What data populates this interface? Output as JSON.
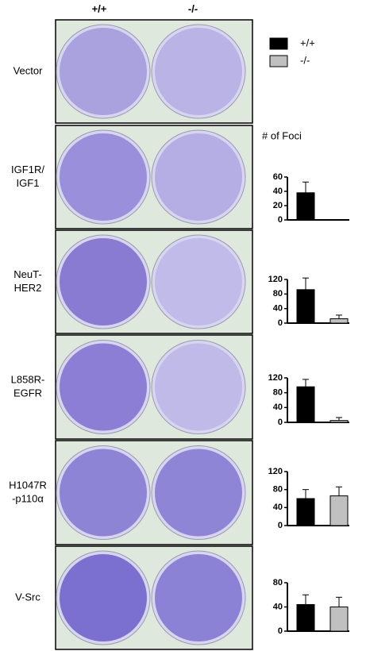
{
  "columns": [
    "+/+",
    "-/-"
  ],
  "legend": [
    {
      "name": "+/+",
      "color": "#000000"
    },
    {
      "name": "-/-",
      "color": "#c0c0c0"
    }
  ],
  "chart_title": "# of Foci",
  "rows": [
    {
      "label": [
        "Vector"
      ]
    },
    {
      "label": [
        "IGF1R/",
        "IGF1"
      ],
      "chart": {
        "type": "bar",
        "ylim": [
          0,
          60
        ],
        "yticks": [
          0,
          20,
          40,
          60
        ],
        "values": [
          38,
          0
        ],
        "errors": [
          15,
          0
        ]
      }
    },
    {
      "label": [
        "NeuT-",
        "HER2"
      ],
      "chart": {
        "type": "bar",
        "ylim": [
          0,
          120
        ],
        "yticks": [
          0,
          40,
          80,
          120
        ],
        "values": [
          92,
          12
        ],
        "errors": [
          32,
          10
        ]
      }
    },
    {
      "label": [
        "L858R-",
        "EGFR"
      ],
      "chart": {
        "type": "bar",
        "ylim": [
          0,
          120
        ],
        "yticks": [
          0,
          40,
          80,
          120
        ],
        "values": [
          96,
          5
        ],
        "errors": [
          20,
          8
        ]
      }
    },
    {
      "label": [
        "H1047R",
        "-p110α"
      ],
      "chart": {
        "type": "bar",
        "ylim": [
          0,
          120
        ],
        "yticks": [
          0,
          40,
          80,
          120
        ],
        "values": [
          60,
          66
        ],
        "errors": [
          20,
          20
        ]
      }
    },
    {
      "label": [
        "V-Src"
      ],
      "chart": {
        "type": "bar",
        "ylim": [
          0,
          80
        ],
        "yticks": [
          0,
          40,
          80
        ],
        "values": [
          44,
          40
        ],
        "errors": [
          16,
          16
        ]
      }
    }
  ]
}
